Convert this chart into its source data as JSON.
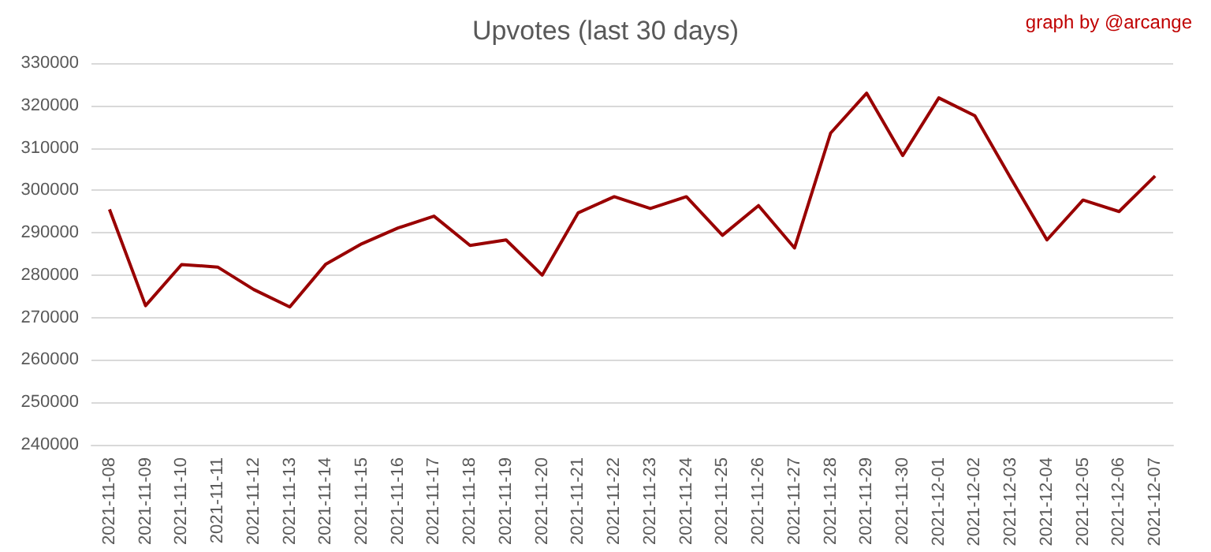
{
  "chart_data": {
    "type": "line",
    "title": "Upvotes (last 30 days)",
    "annotations": [
      "graph by @arcange"
    ],
    "categories": [
      "2021-11-08",
      "2021-11-09",
      "2021-11-10",
      "2021-11-11",
      "2021-11-12",
      "2021-11-13",
      "2021-11-14",
      "2021-11-15",
      "2021-11-16",
      "2021-11-17",
      "2021-11-18",
      "2021-11-19",
      "2021-11-20",
      "2021-11-21",
      "2021-11-22",
      "2021-11-23",
      "2021-11-24",
      "2021-11-25",
      "2021-11-26",
      "2021-11-27",
      "2021-11-28",
      "2021-11-29",
      "2021-11-30",
      "2021-12-01",
      "2021-12-02",
      "2021-12-03",
      "2021-12-04",
      "2021-12-05",
      "2021-12-06",
      "2021-12-07"
    ],
    "series": [
      {
        "color": "#990000",
        "values": [
          295500,
          272800,
          282500,
          281900,
          276600,
          272500,
          282600,
          287400,
          291100,
          293900,
          287000,
          288300,
          280000,
          294700,
          298500,
          295700,
          298500,
          289400,
          296400,
          286400,
          313500,
          322900,
          308200,
          321800,
          317600,
          302800,
          288300,
          297700,
          295000,
          303400
        ]
      }
    ],
    "ylim": [
      240000,
      330000
    ],
    "yticks": [
      240000,
      250000,
      260000,
      270000,
      280000,
      290000,
      300000,
      310000,
      320000,
      330000
    ],
    "grid": "y",
    "marker": "none",
    "line_style": "solid"
  }
}
